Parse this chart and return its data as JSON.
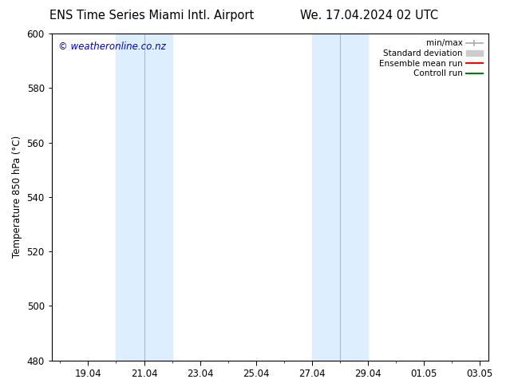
{
  "title_left": "ENS Time Series Miami Intl. Airport",
  "title_right": "We. 17.04.2024 02 UTC",
  "ylabel": "Temperature 850 hPa (°C)",
  "watermark": "© weatheronline.co.nz",
  "watermark_color": "#0000cc",
  "ylim": [
    480,
    600
  ],
  "yticks": [
    480,
    500,
    520,
    540,
    560,
    580,
    600
  ],
  "background_color": "#ffffff",
  "plot_bg_color": "#ffffff",
  "xtick_labels": [
    "19.04",
    "21.04",
    "23.04",
    "25.04",
    "27.04",
    "29.04",
    "01.05",
    "03.05"
  ],
  "xtick_positions": [
    1,
    3,
    5,
    7,
    9,
    11,
    13,
    15
  ],
  "xlim": [
    -0.3,
    15.3
  ],
  "legend_entries": [
    {
      "label": "min/max",
      "color": "#aaaaaa"
    },
    {
      "label": "Standard deviation",
      "color": "#cccccc"
    },
    {
      "label": "Ensemble mean run",
      "color": "#ff0000"
    },
    {
      "label": "Controll run",
      "color": "#008000"
    }
  ],
  "grid_color": "#dddddd",
  "font_size_title": 10.5,
  "font_size_axis": 8.5,
  "font_size_legend": 7.5,
  "font_size_watermark": 8.5,
  "shaded_color": "#ddeeff",
  "shade1_x0": 2,
  "shade1_x1": 4,
  "shade2_x0": 9,
  "shade2_x1": 11,
  "shade1_line_x": 3,
  "shade2_line_x": 10,
  "divline_color": "#aabbcc",
  "divline_lw": 0.8
}
